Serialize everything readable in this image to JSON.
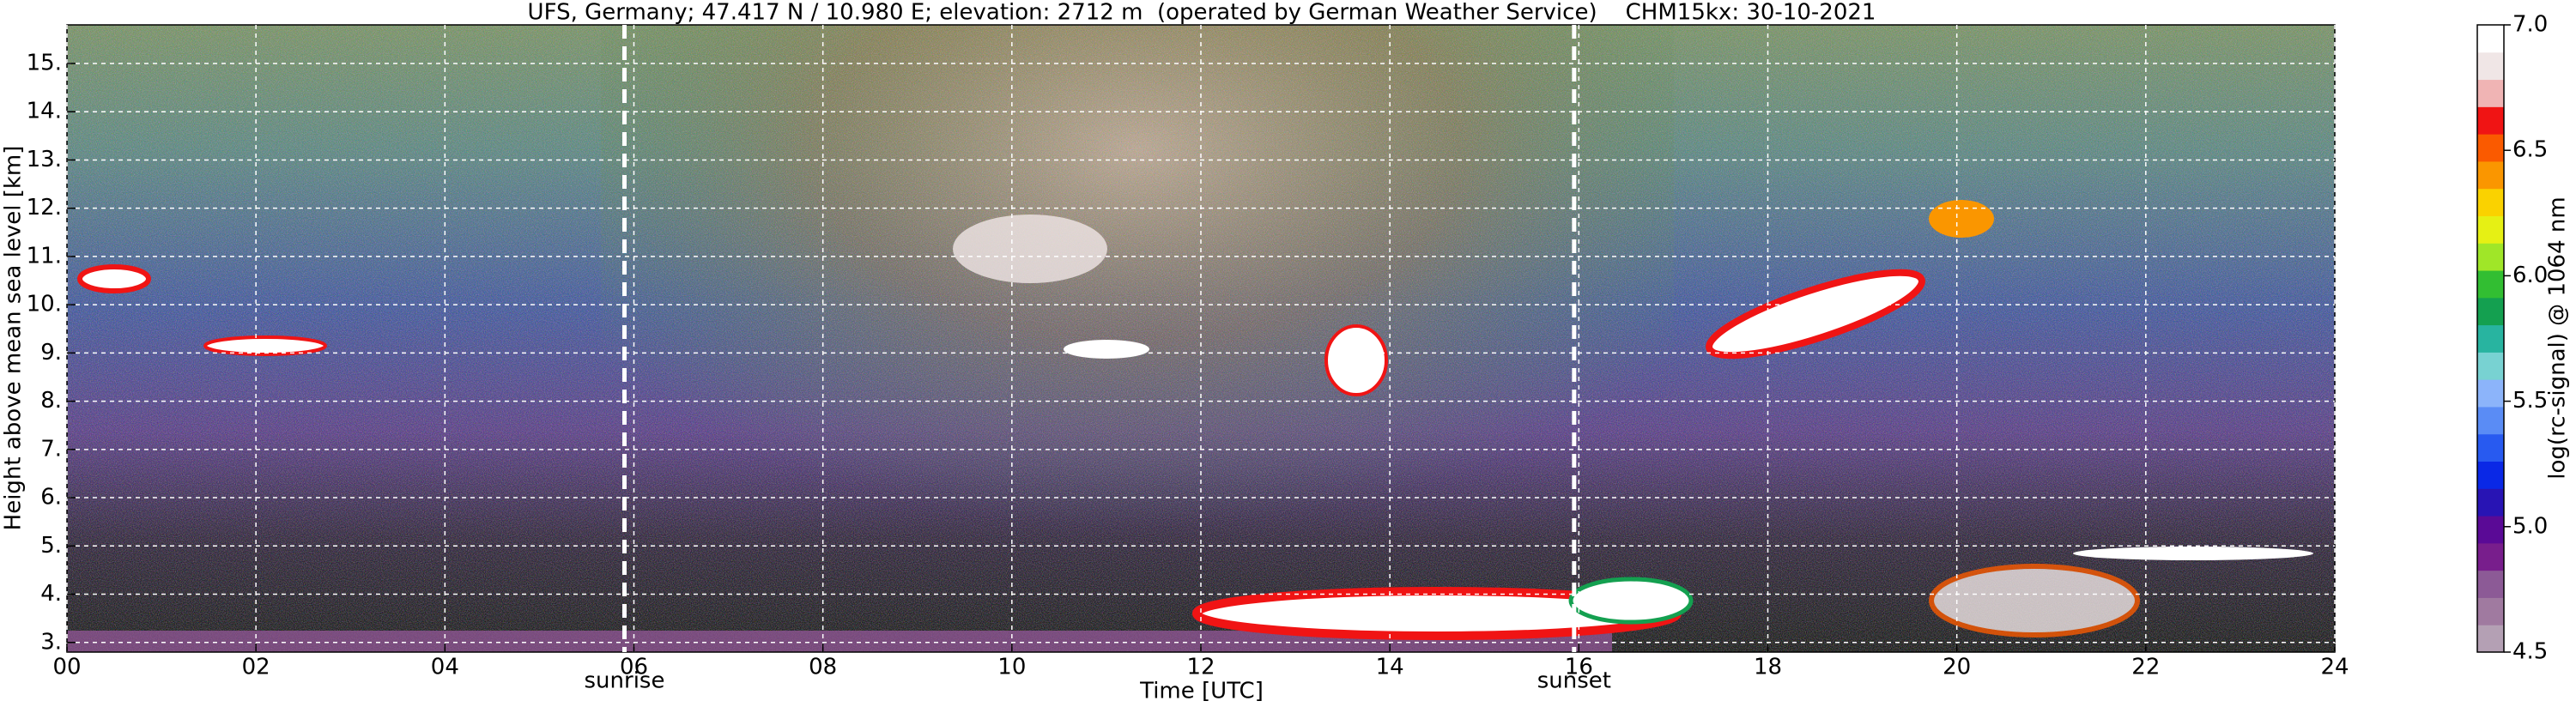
{
  "chart_data": {
    "type": "heatmap",
    "title": "UFS, Germany; 47.417 N / 10.980 E; elevation: 2712 m  (operated by German Weather Service)    CHM15kx: 30-10-2021",
    "xlabel": "Time [UTC]",
    "ylabel": "Height above mean sea level [km]",
    "xlim": [
      0,
      24
    ],
    "xticks": [
      {
        "value": 0,
        "label": "00"
      },
      {
        "value": 2,
        "label": "02"
      },
      {
        "value": 4,
        "label": "04"
      },
      {
        "value": 6,
        "label": "06"
      },
      {
        "value": 8,
        "label": "08"
      },
      10,
      12,
      14,
      16,
      18,
      20,
      22,
      24
    ],
    "ylim": [
      2.8,
      15.8
    ],
    "yticks": [
      {
        "value": 3,
        "label": "3."
      },
      {
        "value": 4,
        "label": "4."
      },
      {
        "value": 5,
        "label": "5."
      },
      {
        "value": 6,
        "label": "6."
      },
      {
        "value": 7,
        "label": "7."
      },
      {
        "value": 8,
        "label": "8."
      },
      {
        "value": 9,
        "label": "9."
      },
      {
        "value": 10,
        "label": "10."
      },
      {
        "value": 11,
        "label": "11."
      },
      {
        "value": 12,
        "label": "12."
      },
      {
        "value": 13,
        "label": "13."
      },
      {
        "value": 14,
        "label": "14."
      },
      {
        "value": 15,
        "label": "15."
      }
    ],
    "grid": true,
    "annotations": [
      {
        "text": "sunrise",
        "x": 5.9
      },
      {
        "text": "sunset",
        "x": 15.95
      }
    ],
    "colorbar": {
      "label": "log(rc-signal) @ 1064 nm",
      "lim": [
        4.5,
        7.0
      ],
      "ticks": [
        4.5,
        {
          "value": 5,
          "label": "5.0"
        },
        5.5,
        {
          "value": 6,
          "label": "6.0"
        },
        6.5,
        {
          "value": 7,
          "label": "7.0"
        }
      ],
      "colors": [
        "#b4a0b4",
        "#a07aa0",
        "#8c5a96",
        "#781e8c",
        "#5a0a96",
        "#2814b4",
        "#0a28e6",
        "#285af0",
        "#5a8cf5",
        "#8cb4fa",
        "#78d2d2",
        "#28b4a0",
        "#14a050",
        "#32be32",
        "#a0e628",
        "#e6f014",
        "#fad200",
        "#fa9600",
        "#fa5a00",
        "#f01414",
        "#f0b4b4",
        "#f0e6e6",
        "#ffffff"
      ]
    }
  }
}
